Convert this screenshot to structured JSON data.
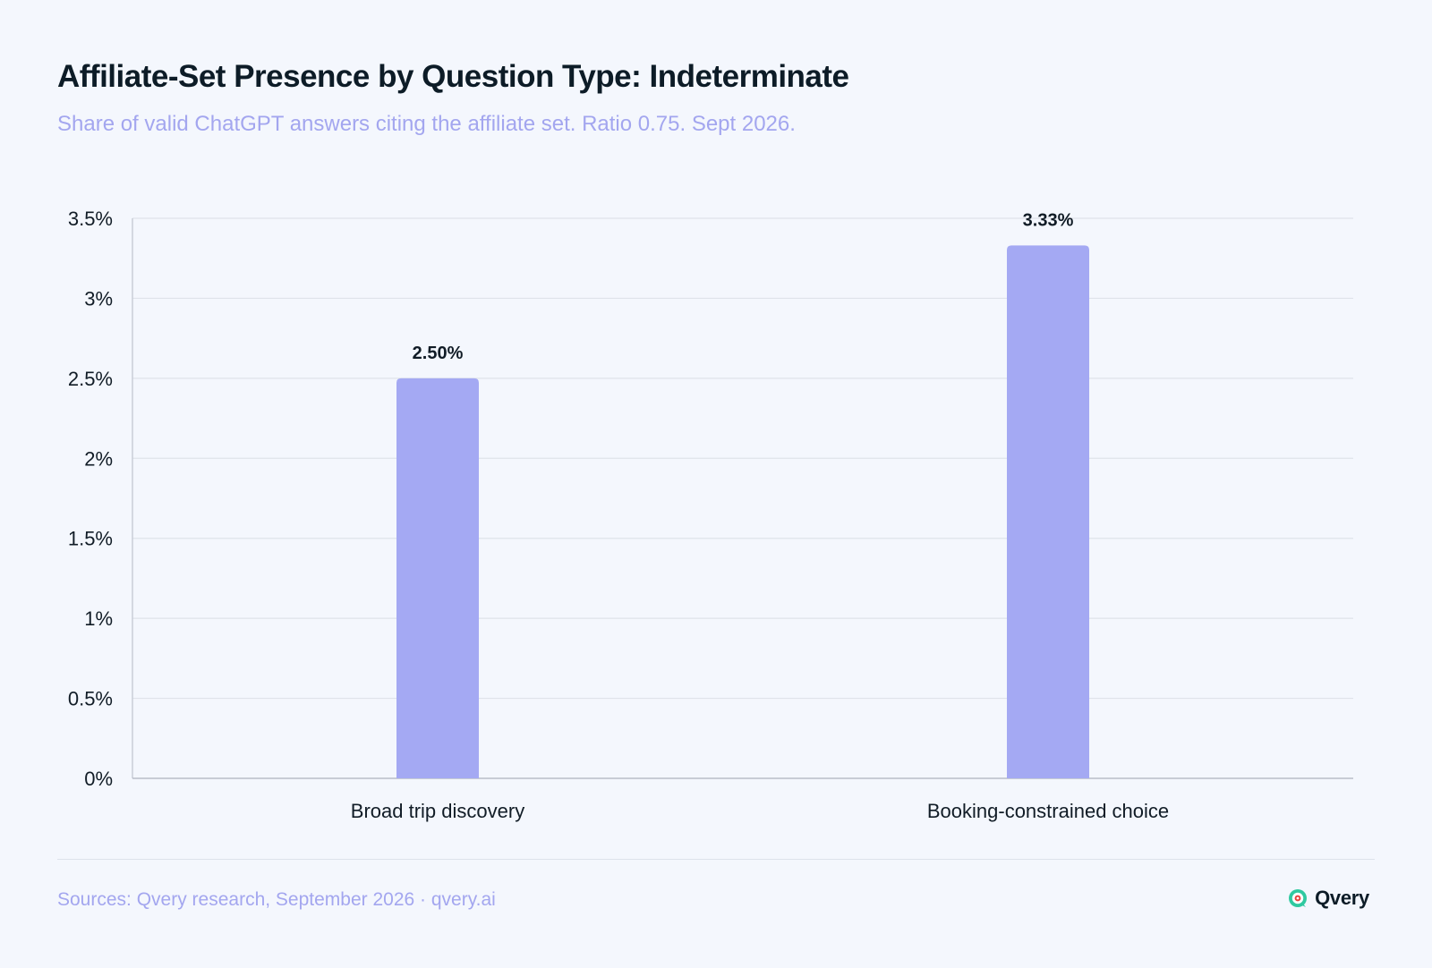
{
  "header": {
    "title": "Affiliate-Set Presence by Question Type: Indeterminate",
    "subtitle": "Share of valid ChatGPT answers citing the affiliate set. Ratio 0.75. Sept 2026."
  },
  "chart_data": {
    "type": "bar",
    "categories": [
      "Broad trip discovery",
      "Booking-constrained choice"
    ],
    "values": [
      2.5,
      3.33
    ],
    "value_labels": [
      "2.50%",
      "3.33%"
    ],
    "ylim": [
      0,
      3.5
    ],
    "yticks": [
      0,
      0.5,
      1,
      1.5,
      2,
      2.5,
      3,
      3.5
    ],
    "ytick_labels": [
      "0%",
      "0.5%",
      "1%",
      "1.5%",
      "2%",
      "2.5%",
      "3%",
      "3.5%"
    ],
    "grid": true,
    "legend": "none",
    "xlabel": "",
    "ylabel": "",
    "bar_color": "#a4a9f3"
  },
  "footer": {
    "source": "Sources: Qvery research, September 2026 · qvery.ai",
    "brand": "Qvery",
    "brand_icon": "qvery-logo-icon"
  },
  "colors": {
    "background": "#f4f7fd",
    "accent": "#a3a6ef",
    "grid": "#dfe3ea",
    "brand_green": "#2fc9a0",
    "brand_red": "#e8413c"
  }
}
